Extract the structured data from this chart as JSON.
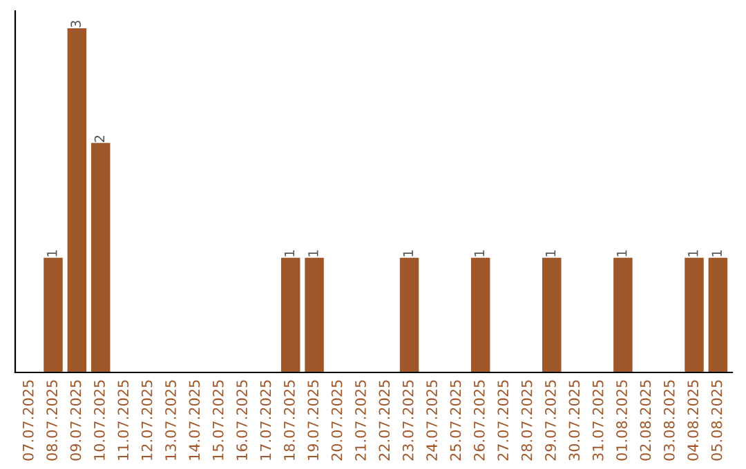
{
  "chart_data": {
    "type": "bar",
    "categories": [
      "07.07.2025",
      "08.07.2025",
      "09.07.2025",
      "10.07.2025",
      "11.07.2025",
      "12.07.2025",
      "13.07.2025",
      "14.07.2025",
      "15.07.2025",
      "16.07.2025",
      "17.07.2025",
      "18.07.2025",
      "19.07.2025",
      "20.07.2025",
      "21.07.2025",
      "22.07.2025",
      "23.07.2025",
      "24.07.2025",
      "25.07.2025",
      "26.07.2025",
      "27.07.2025",
      "28.07.2025",
      "29.07.2025",
      "30.07.2025",
      "31.07.2025",
      "01.08.2025",
      "02.08.2025",
      "03.08.2025",
      "04.08.2025",
      "05.08.2025"
    ],
    "values": [
      0,
      1,
      3,
      2,
      0,
      0,
      0,
      0,
      0,
      0,
      0,
      1,
      1,
      0,
      0,
      0,
      1,
      0,
      0,
      1,
      0,
      0,
      1,
      0,
      0,
      1,
      0,
      0,
      1,
      1
    ],
    "value_labels": [
      null,
      "1",
      "3",
      "2",
      null,
      null,
      null,
      null,
      null,
      null,
      null,
      "1",
      "1",
      null,
      null,
      null,
      "1",
      null,
      null,
      "1",
      null,
      null,
      "1",
      null,
      null,
      "1",
      null,
      null,
      "1",
      "1"
    ],
    "color": "#a0572a",
    "tick_labels": "x",
    "grid": false,
    "legend": false
  }
}
